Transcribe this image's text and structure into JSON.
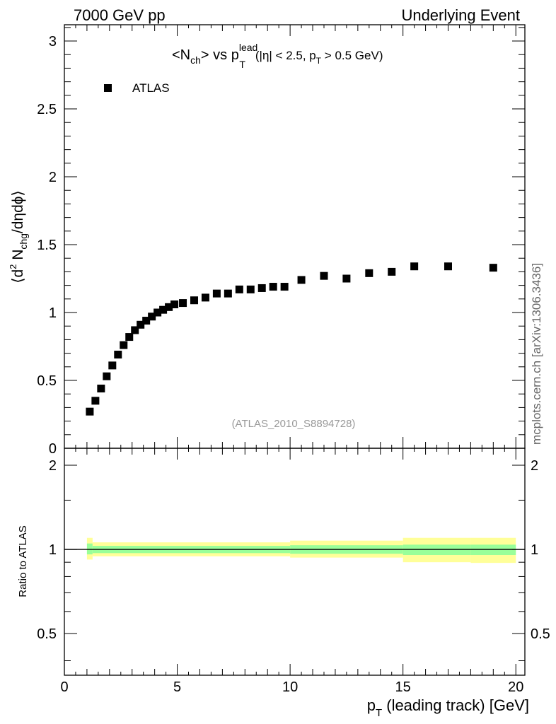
{
  "header": {
    "left": "7000 GeV pp",
    "right": "Underlying Event"
  },
  "watermark": "mcplots.cern.ch [arXiv:1306.3436]",
  "analysis_tag": "(ATLAS_2010_S8894728)",
  "title": {
    "obs": "<N",
    "obs_sub": "ch",
    "vs": "> vs p",
    "sup": "lead",
    "sub": "T",
    "cuts_a": "(|η| < 2.5, p",
    "cuts_sub": "T",
    "cuts_b": " > 0.5 GeV)"
  },
  "ylabel_main": {
    "a": "⟨d",
    "sup": "2",
    "b": " N",
    "sub": "chg",
    "c": "/dηdϕ⟩"
  },
  "ylabel_ratio": "Ratio to ATLAS",
  "xlabel": {
    "a": "p",
    "sub": "T",
    "b": " (leading track) [GeV]"
  },
  "legend": {
    "label": "ATLAS",
    "placement": "top-left"
  },
  "colors": {
    "marker": "#000000",
    "band_inner": "#99ff99",
    "band_outer": "#ffff99"
  },
  "chart_data": [
    {
      "type": "scatter",
      "panel": "main",
      "series": [
        {
          "name": "ATLAS",
          "x": [
            1.125,
            1.375,
            1.625,
            1.875,
            2.125,
            2.375,
            2.625,
            2.875,
            3.125,
            3.375,
            3.625,
            3.875,
            4.125,
            4.375,
            4.625,
            4.875,
            5.25,
            5.75,
            6.25,
            6.75,
            7.25,
            7.75,
            8.25,
            8.75,
            9.25,
            9.75,
            10.5,
            11.5,
            12.5,
            13.5,
            14.5,
            15.5,
            17.0,
            19.0
          ],
          "y": [
            0.27,
            0.35,
            0.44,
            0.53,
            0.61,
            0.69,
            0.76,
            0.82,
            0.87,
            0.91,
            0.94,
            0.97,
            1.0,
            1.02,
            1.04,
            1.06,
            1.07,
            1.09,
            1.11,
            1.14,
            1.14,
            1.17,
            1.17,
            1.18,
            1.19,
            1.19,
            1.24,
            1.27,
            1.25,
            1.29,
            1.3,
            1.34,
            1.34,
            1.33
          ]
        }
      ],
      "xlim": [
        0,
        20.4
      ],
      "ylim": [
        0,
        3.12
      ],
      "yticks": [
        0,
        0.5,
        1,
        1.5,
        2,
        2.5,
        3
      ],
      "ytick_labels": [
        "0",
        "0.5",
        "1",
        "1.5",
        "2",
        "2.5",
        "3"
      ]
    },
    {
      "type": "area",
      "panel": "ratio",
      "bins": [
        {
          "x": [
            1.0,
            1.25
          ],
          "inner": [
            0.96,
            1.05
          ],
          "outer": [
            0.92,
            1.1
          ]
        },
        {
          "x": [
            1.25,
            10.0
          ],
          "inner": [
            0.97,
            1.03
          ],
          "outer": [
            0.945,
            1.06
          ]
        },
        {
          "x": [
            10.0,
            15.0
          ],
          "inner": [
            0.965,
            1.035
          ],
          "outer": [
            0.935,
            1.075
          ]
        },
        {
          "x": [
            15.0,
            18.0
          ],
          "inner": [
            0.955,
            1.04
          ],
          "outer": [
            0.9,
            1.1
          ]
        },
        {
          "x": [
            18.0,
            20.0
          ],
          "inner": [
            0.955,
            1.04
          ],
          "outer": [
            0.895,
            1.1
          ]
        }
      ],
      "reference": 1.0,
      "xlim": [
        0,
        20.4
      ],
      "ylim": [
        0.355,
        2.3
      ],
      "yscale": "log",
      "yticks": [
        0.5,
        1,
        2
      ],
      "ytick_labels": [
        "0.5",
        "1",
        "2"
      ],
      "xticks": [
        0,
        5,
        10,
        15,
        20
      ],
      "xtick_labels": [
        "0",
        "5",
        "10",
        "15",
        "20"
      ]
    }
  ]
}
